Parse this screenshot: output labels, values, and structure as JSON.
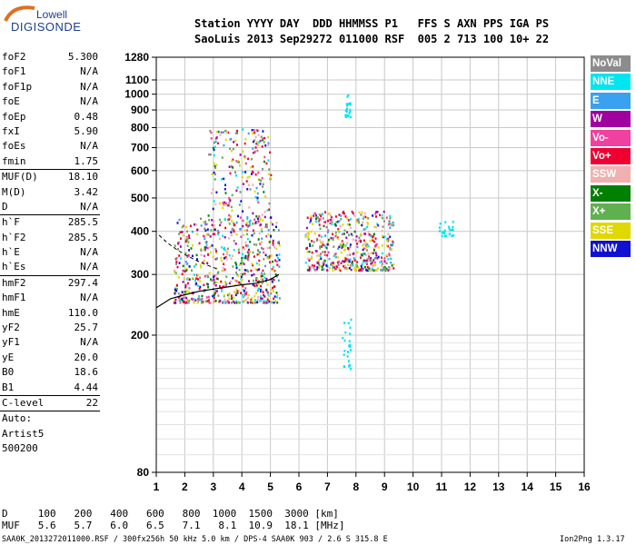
{
  "logo": {
    "top": "Lowell",
    "bottom": "DIGISONDE"
  },
  "header": {
    "labels": [
      "Station",
      "YYYY",
      "DAY",
      "DDD",
      "HHMMSS",
      "P1",
      "FFS",
      "S",
      "AXN",
      "PPS",
      "IGA",
      "PS"
    ],
    "values": [
      "SaoLuis",
      "2013",
      "Sep29",
      "272",
      "011000",
      "RSF",
      "005",
      "2",
      "713",
      "100",
      "10+",
      "22"
    ]
  },
  "params_group1": [
    {
      "name": "foF2",
      "value": "5.300"
    },
    {
      "name": "foF1",
      "value": "N/A"
    },
    {
      "name": "foF1p",
      "value": "N/A"
    },
    {
      "name": "foE",
      "value": "N/A"
    },
    {
      "name": "foEp",
      "value": "0.48"
    },
    {
      "name": "fxI",
      "value": "5.90"
    },
    {
      "name": "foEs",
      "value": "N/A"
    },
    {
      "name": "fmin",
      "value": "1.75"
    }
  ],
  "params_group2": [
    {
      "name": "MUF(D)",
      "value": "18.10"
    },
    {
      "name": "M(D)",
      "value": "3.42"
    },
    {
      "name": "D",
      "value": "N/A"
    }
  ],
  "params_group3": [
    {
      "name": "h`F",
      "value": "285.5"
    },
    {
      "name": "h`F2",
      "value": "285.5"
    },
    {
      "name": "h`E",
      "value": "N/A"
    },
    {
      "name": "h`Es",
      "value": "N/A"
    }
  ],
  "params_group4": [
    {
      "name": "hmF2",
      "value": "297.4"
    },
    {
      "name": "hmF1",
      "value": "N/A"
    },
    {
      "name": "hmE",
      "value": "110.0"
    },
    {
      "name": "yF2",
      "value": "25.7"
    },
    {
      "name": "yF1",
      "value": "N/A"
    },
    {
      "name": "yE",
      "value": "20.0"
    },
    {
      "name": "B0",
      "value": "18.6"
    },
    {
      "name": "B1",
      "value": "4.44"
    }
  ],
  "params_group5": [
    {
      "name": "C-level",
      "value": "22"
    }
  ],
  "auto": {
    "line1": "Auto:",
    "line2": "Artist5",
    "line3": "500200"
  },
  "legend": [
    {
      "label": "NoVal",
      "bg": "#8c8c8c",
      "fg": "#ffffff"
    },
    {
      "label": "NNE",
      "bg": "#00e5f0",
      "fg": "#ffffff"
    },
    {
      "label": "E",
      "bg": "#3aa0f0",
      "fg": "#ffffff"
    },
    {
      "label": "W",
      "bg": "#a000a0",
      "fg": "#ffffff"
    },
    {
      "label": "Vo-",
      "bg": "#f040a0",
      "fg": "#ffffff"
    },
    {
      "label": "Vo+",
      "bg": "#f00030",
      "fg": "#ffffff"
    },
    {
      "label": "SSW",
      "bg": "#f0b0b0",
      "fg": "#ffffff"
    },
    {
      "label": "X-",
      "bg": "#008000",
      "fg": "#ffffff"
    },
    {
      "label": "X+",
      "bg": "#60b050",
      "fg": "#ffffff"
    },
    {
      "label": "SSE",
      "bg": "#e0d800",
      "fg": "#ffffff"
    },
    {
      "label": "NNW",
      "bg": "#1010d0",
      "fg": "#ffffff"
    }
  ],
  "muf_table": {
    "d_label": "D",
    "d_values": [
      "100",
      "200",
      "400",
      "600",
      "800",
      "1000",
      "1500",
      "3000"
    ],
    "d_unit": "[km]",
    "muf_label": "MUF",
    "muf_values": [
      "5.6",
      "5.7",
      "6.0",
      "6.5",
      "7.1",
      "8.1",
      "10.9",
      "18.1"
    ],
    "muf_unit": "[MHz]"
  },
  "footer": {
    "left": "SAA0K_2013272011000.RSF / 300fx256h 50 kHz 5.0 km / DPS-4 SAA0K 903 / 2.6 S 315.8 E",
    "right": "Ion2Png 1.3.17"
  },
  "chart_data": {
    "type": "scatter",
    "xlim": [
      1,
      16
    ],
    "ylim": [
      80,
      1280
    ],
    "y_scale": "log",
    "x_ticks": [
      "1",
      "2",
      "3",
      "4",
      "5",
      "6",
      "7",
      "8",
      "9",
      "10",
      "11",
      "12",
      "13",
      "14",
      "15",
      "16"
    ],
    "y_ticks": [
      "80",
      "200",
      "300",
      "400",
      "500",
      "600",
      "700",
      "800",
      "900",
      "1000",
      "1100",
      "1280"
    ],
    "grid": true,
    "legend_position": "right",
    "trace_curve": {
      "x": [
        1.0,
        1.5,
        2.0,
        2.5,
        3.0,
        3.5,
        4.0,
        4.5,
        5.0,
        5.3
      ],
      "y": [
        240,
        255,
        262,
        268,
        272,
        276,
        280,
        283,
        290,
        300
      ]
    },
    "clusters": [
      {
        "x": [
          1.6,
          5.3
        ],
        "y": [
          250,
          440
        ],
        "color": "mix"
      },
      {
        "x": [
          2.8,
          5.0
        ],
        "y": [
          420,
          800
        ],
        "color": "mix"
      },
      {
        "x": [
          6.2,
          9.3
        ],
        "y": [
          310,
          460
        ],
        "color": "mix"
      },
      {
        "x": [
          7.6,
          7.8
        ],
        "y": [
          860,
          1000
        ],
        "color": "#00e5f0"
      },
      {
        "x": [
          7.5,
          7.8
        ],
        "y": [
          160,
          230
        ],
        "color": "#00e5f0"
      },
      {
        "x": [
          10.9,
          11.4
        ],
        "y": [
          390,
          430
        ],
        "color": "#00e5f0"
      }
    ]
  }
}
